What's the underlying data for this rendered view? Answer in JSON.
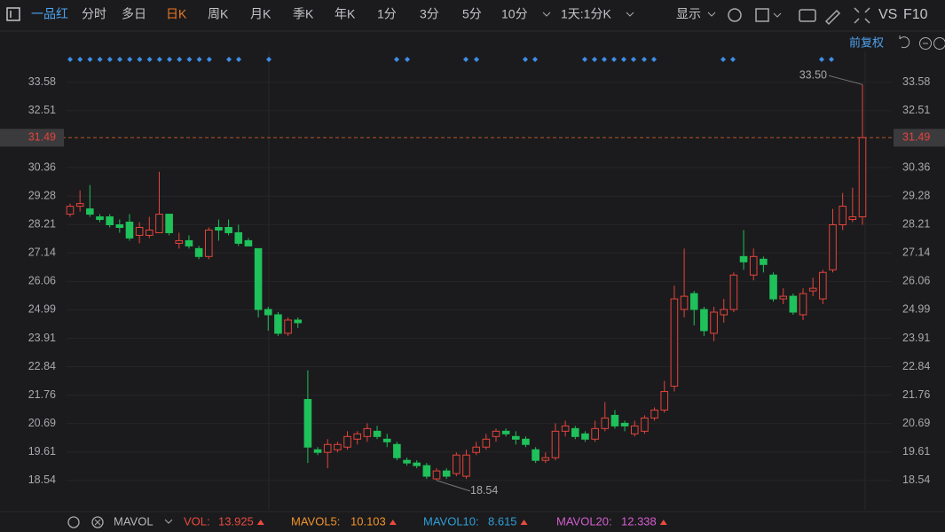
{
  "toolbar": {
    "stock": "一品红",
    "periods": [
      "分时",
      "多日",
      "日K",
      "周K",
      "月K",
      "季K",
      "年K",
      "1分",
      "3分",
      "5分",
      "10分",
      "1天:1分K"
    ],
    "display": "显示",
    "vs": "VS",
    "f10": "F10",
    "adjust": "前复权"
  },
  "chart_data": {
    "type": "candlestick",
    "open": [
      28.6,
      28.9,
      28.8,
      28.5,
      28.5,
      28.2,
      28.3,
      27.8,
      27.8,
      27.9,
      28.6,
      27.5,
      27.6,
      27.3,
      27.0,
      28.1,
      28.1,
      27.9,
      27.6,
      27.3,
      25.0,
      24.8,
      24.1,
      24.6,
      21.6,
      19.7,
      19.6,
      19.7,
      19.8,
      20.1,
      20.2,
      20.4,
      20.1,
      19.9,
      19.3,
      19.2,
      19.1,
      18.6,
      18.9,
      18.8,
      18.7,
      19.6,
      19.8,
      20.2,
      20.4,
      20.2,
      20.1,
      19.7,
      19.3,
      19.4,
      20.4,
      20.5,
      20.3,
      20.1,
      20.5,
      21.0,
      20.7,
      20.3,
      20.4,
      20.9,
      21.2,
      22.1,
      25.0,
      25.6,
      25.0,
      24.1,
      24.8,
      25.0,
      27.0,
      26.3,
      26.9,
      26.3,
      25.4,
      25.5,
      24.8,
      25.7,
      25.4,
      26.5,
      28.2,
      28.4,
      28.5
    ],
    "close": [
      28.9,
      29.0,
      28.6,
      28.4,
      28.2,
      28.1,
      27.7,
      28.1,
      28.0,
      28.6,
      27.9,
      27.6,
      27.4,
      27.0,
      28.0,
      28.0,
      27.9,
      27.5,
      27.4,
      25.0,
      24.8,
      24.1,
      24.6,
      24.5,
      19.8,
      19.6,
      19.9,
      19.9,
      20.2,
      20.3,
      20.5,
      20.2,
      20.0,
      19.4,
      19.2,
      19.1,
      18.7,
      18.9,
      18.7,
      19.5,
      19.5,
      19.8,
      20.1,
      20.4,
      20.3,
      20.1,
      19.9,
      19.3,
      19.4,
      20.4,
      20.6,
      20.2,
      20.1,
      20.5,
      20.9,
      20.6,
      20.6,
      20.6,
      20.9,
      21.2,
      21.9,
      25.4,
      25.5,
      25.0,
      24.2,
      24.9,
      25.0,
      26.3,
      26.8,
      27.0,
      26.7,
      25.4,
      25.5,
      24.9,
      25.6,
      25.8,
      26.4,
      28.2,
      28.9,
      28.5,
      31.49
    ],
    "high": [
      29.0,
      29.5,
      29.7,
      28.6,
      28.6,
      28.4,
      28.6,
      28.3,
      28.5,
      30.2,
      28.6,
      27.9,
      27.8,
      27.4,
      28.1,
      28.4,
      28.4,
      28.2,
      27.7,
      27.3,
      25.1,
      24.9,
      24.7,
      24.7,
      22.7,
      19.8,
      20.1,
      20.0,
      20.4,
      20.4,
      20.7,
      20.6,
      20.3,
      20.0,
      19.4,
      19.3,
      19.2,
      19.0,
      19.0,
      19.6,
      19.7,
      20.0,
      20.3,
      20.5,
      20.5,
      20.4,
      20.2,
      19.8,
      19.6,
      20.7,
      20.8,
      20.6,
      20.4,
      20.8,
      21.5,
      21.2,
      20.8,
      20.8,
      21.0,
      21.3,
      22.3,
      25.9,
      27.3,
      25.7,
      25.1,
      25.1,
      25.4,
      26.4,
      28.0,
      27.3,
      27.0,
      26.4,
      25.8,
      25.6,
      25.8,
      26.2,
      26.5,
      28.8,
      29.4,
      29.6,
      33.5
    ],
    "low": [
      28.5,
      28.7,
      28.5,
      28.3,
      28.1,
      27.9,
      27.6,
      27.5,
      27.7,
      27.9,
      27.8,
      27.3,
      27.3,
      26.9,
      26.9,
      27.6,
      27.8,
      27.4,
      27.4,
      24.7,
      24.2,
      24.0,
      24.0,
      24.3,
      19.2,
      19.5,
      19.0,
      19.6,
      19.7,
      19.9,
      20.0,
      20.1,
      19.8,
      19.3,
      19.1,
      19.0,
      18.6,
      18.54,
      18.6,
      18.7,
      18.6,
      19.5,
      19.7,
      20.0,
      20.2,
      19.9,
      19.8,
      19.2,
      19.2,
      19.3,
      20.2,
      20.1,
      20.0,
      20.0,
      20.4,
      20.5,
      20.4,
      20.2,
      20.3,
      20.8,
      21.1,
      21.9,
      24.7,
      24.4,
      24.0,
      23.8,
      24.5,
      24.9,
      26.5,
      26.1,
      26.4,
      25.3,
      25.2,
      24.8,
      24.6,
      25.5,
      25.2,
      26.4,
      28.0,
      28.3,
      28.2
    ],
    "up_color": "#e5443c",
    "down_color": "#1fc15a",
    "ylim": [
      17.43,
      35.52
    ],
    "yticks": [
      33.58,
      32.51,
      30.36,
      29.28,
      28.21,
      27.14,
      26.06,
      24.99,
      23.91,
      22.84,
      21.76,
      20.69,
      19.61,
      18.54
    ],
    "grid": true,
    "current_price": 31.49,
    "annotations": [
      {
        "value": 33.5,
        "label": "33.50"
      },
      {
        "value": 18.54,
        "label": "18.54"
      }
    ]
  },
  "footer": {
    "indicator": "MAVOL",
    "items": [
      {
        "label": "VOL:",
        "value": 13.925
      },
      {
        "label": "MAVOL5:",
        "value": 10.103
      },
      {
        "label": "MAVOL10:",
        "value": 8.615
      },
      {
        "label": "MAVOL20:",
        "value": 12.338
      }
    ]
  }
}
